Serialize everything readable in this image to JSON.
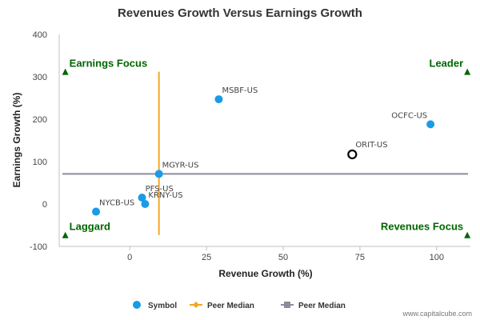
{
  "chart_data": {
    "type": "scatter",
    "title": "Revenues Growth Versus Earnings Growth",
    "xlabel": "Revenue Growth (%)",
    "ylabel": "Earnings Growth (%)",
    "xlim": [
      -23,
      111
    ],
    "ylim": [
      -100,
      400
    ],
    "x_ticks": [
      0,
      25,
      50,
      75,
      100
    ],
    "y_ticks": [
      -100,
      0,
      100,
      200,
      300,
      400
    ],
    "grid": false,
    "legend_position": "bottom-center",
    "colors": {
      "symbol": "#1a9be8",
      "peer_median_revenue": "#f5a623",
      "peer_median_earnings": "#8c8c9c",
      "subject_outline": "#000000",
      "quadrant_marker": "#006600"
    },
    "points": [
      {
        "label": "MSBF-US",
        "x": 29,
        "y": 247,
        "label_pos": "right"
      },
      {
        "label": "OCFC-US",
        "x": 98,
        "y": 188,
        "label_pos": "left"
      },
      {
        "label": "MGYR-US",
        "x": 9.5,
        "y": 71,
        "label_pos": "right"
      },
      {
        "label": "PFS-US",
        "x": 4,
        "y": 15,
        "label_pos": "right"
      },
      {
        "label": "KRNY-US",
        "x": 5,
        "y": 0,
        "label_pos": "right"
      },
      {
        "label": "NYCB-US",
        "x": -11,
        "y": -18,
        "label_pos": "right"
      }
    ],
    "subject": {
      "label": "ORIT-US",
      "x": 72.5,
      "y": 117
    },
    "peer_median_revenue_x": 9.5,
    "peer_median_revenue_span": [
      -73,
      312
    ],
    "peer_median_earnings_y": 71,
    "quadrants": [
      {
        "label": "Earnings Focus",
        "x": -21,
        "y": 312,
        "anchor": "start"
      },
      {
        "label": "Leader",
        "x": 110,
        "y": 312,
        "anchor": "end"
      },
      {
        "label": "Laggard",
        "x": -21,
        "y": -73,
        "anchor": "start"
      },
      {
        "label": "Revenues Focus",
        "x": 110,
        "y": -73,
        "anchor": "end"
      }
    ],
    "legend": [
      {
        "label": "Symbol",
        "kind": "circle",
        "color_key": "symbol"
      },
      {
        "label": "Peer Median",
        "kind": "line-diamond",
        "color_key": "peer_median_revenue"
      },
      {
        "label": "Peer Median",
        "kind": "line-square",
        "color_key": "peer_median_earnings"
      }
    ]
  },
  "credit": "www.capitalcube.com"
}
